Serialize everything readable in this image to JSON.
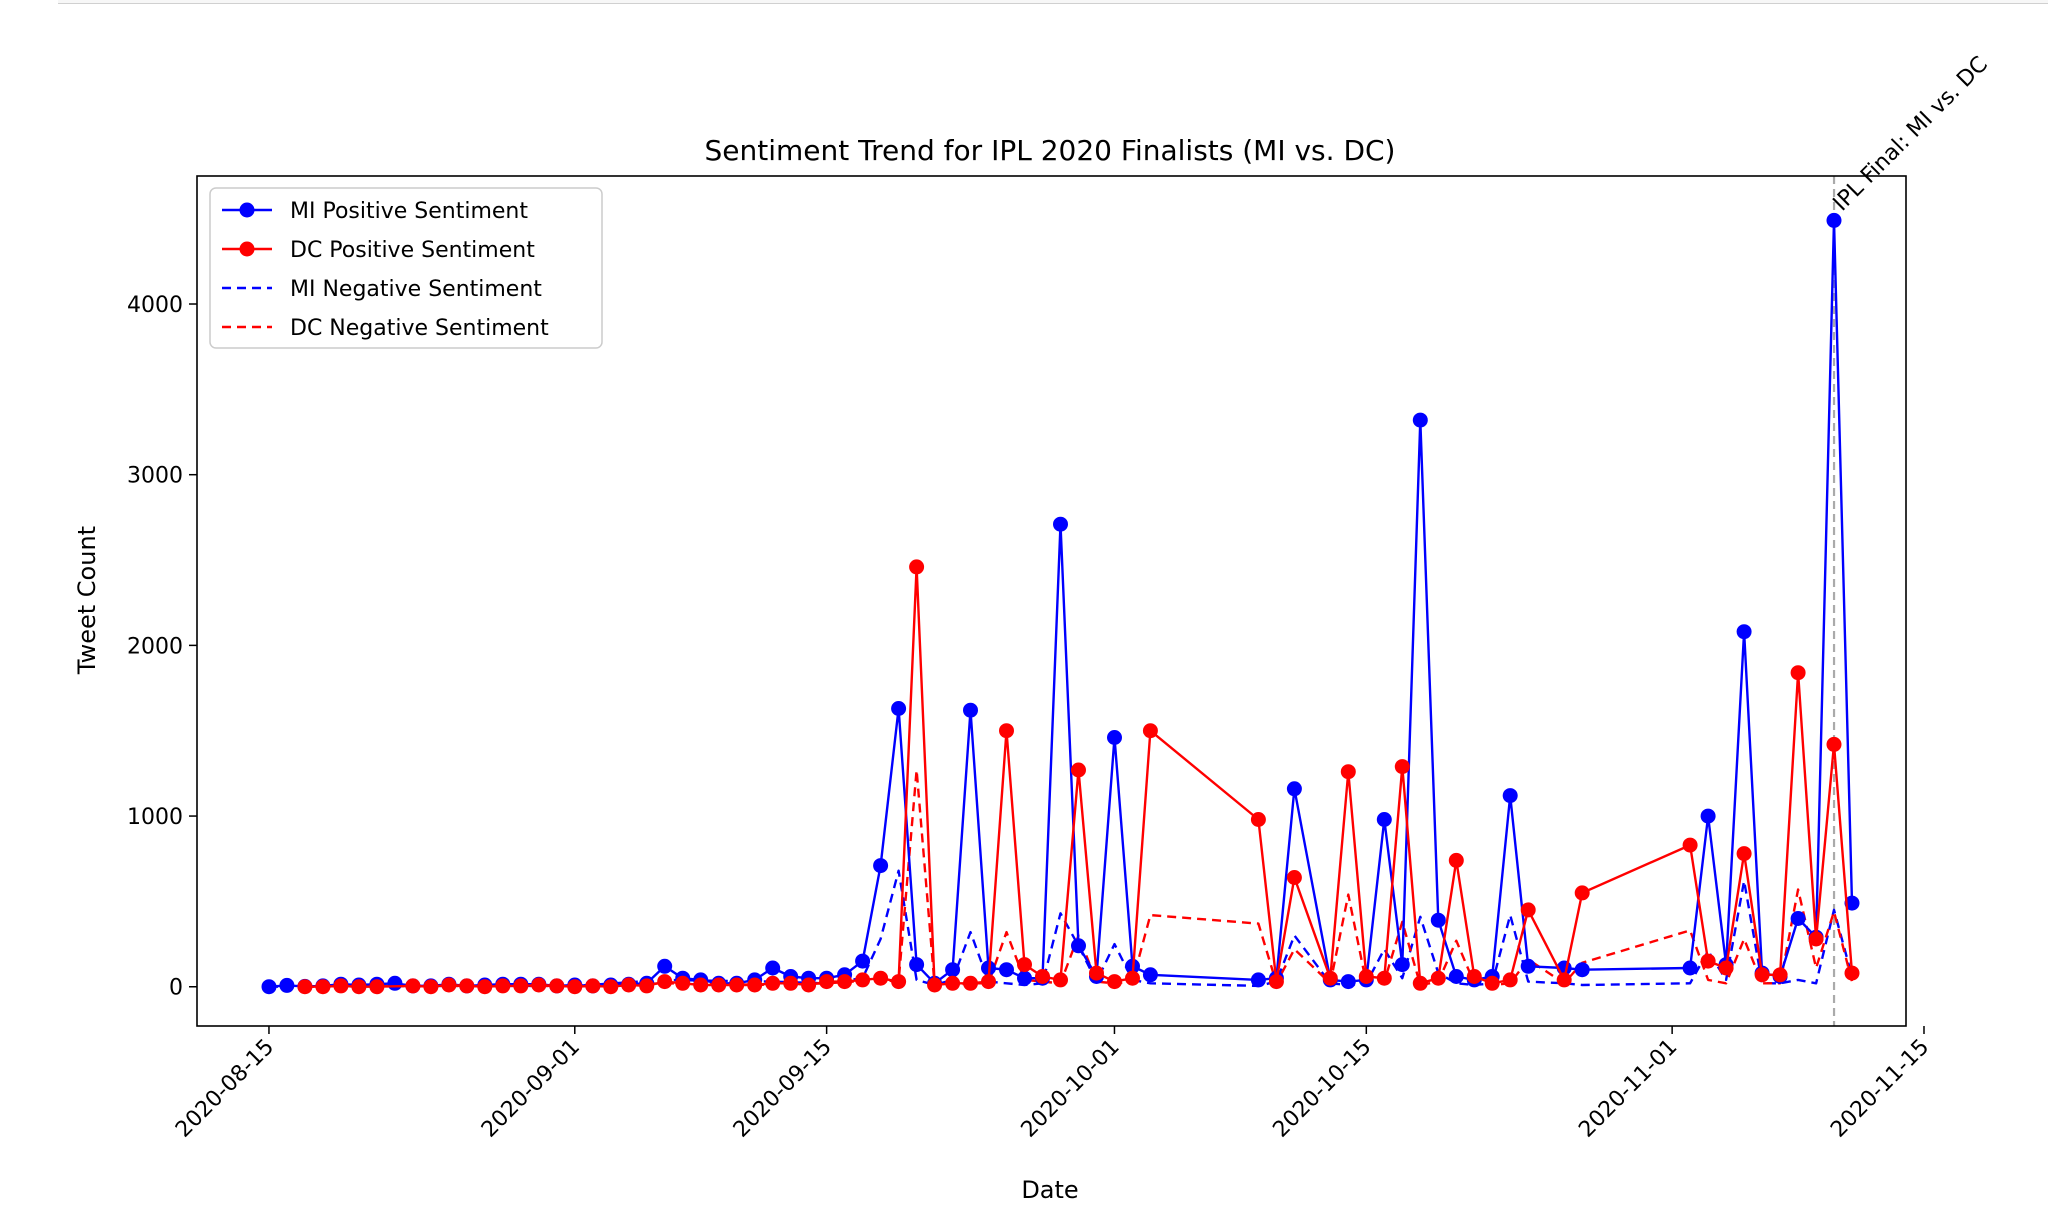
{
  "chart_data": {
    "type": "line",
    "title": "Sentiment Trend for IPL 2020 Finalists (MI vs. DC)",
    "xlabel": "Date",
    "ylabel": "Tweet Count",
    "xlim": [
      "2020-08-11",
      "2020-11-14"
    ],
    "ylim": [
      -230,
      4750
    ],
    "x_ticks": [
      "2020-08-15",
      "2020-09-01",
      "2020-09-15",
      "2020-10-01",
      "2020-10-15",
      "2020-11-01",
      "2020-11-15"
    ],
    "y_ticks": [
      0,
      1000,
      2000,
      3000,
      4000
    ],
    "legend_position": "upper-left",
    "grid": false,
    "annotation": {
      "date": "2020-11-10",
      "label": "IPL Final: MI vs. DC"
    },
    "series": [
      {
        "name": "MI Positive Sentiment",
        "color": "#0000ff",
        "style": "solid-marker",
        "points": [
          [
            "2020-08-15",
            0
          ],
          [
            "2020-08-16",
            8
          ],
          [
            "2020-08-17",
            2
          ],
          [
            "2020-08-18",
            5
          ],
          [
            "2020-08-19",
            15
          ],
          [
            "2020-08-20",
            10
          ],
          [
            "2020-08-21",
            15
          ],
          [
            "2020-08-22",
            20
          ],
          [
            "2020-08-23",
            5
          ],
          [
            "2020-08-24",
            5
          ],
          [
            "2020-08-25",
            15
          ],
          [
            "2020-08-26",
            5
          ],
          [
            "2020-08-27",
            10
          ],
          [
            "2020-08-28",
            15
          ],
          [
            "2020-08-29",
            15
          ],
          [
            "2020-08-30",
            15
          ],
          [
            "2020-08-31",
            5
          ],
          [
            "2020-09-01",
            10
          ],
          [
            "2020-09-02",
            5
          ],
          [
            "2020-09-03",
            10
          ],
          [
            "2020-09-04",
            15
          ],
          [
            "2020-09-05",
            20
          ],
          [
            "2020-09-06",
            120
          ],
          [
            "2020-09-07",
            50
          ],
          [
            "2020-09-08",
            40
          ],
          [
            "2020-09-09",
            20
          ],
          [
            "2020-09-10",
            20
          ],
          [
            "2020-09-11",
            40
          ],
          [
            "2020-09-12",
            110
          ],
          [
            "2020-09-13",
            60
          ],
          [
            "2020-09-14",
            50
          ],
          [
            "2020-09-15",
            50
          ],
          [
            "2020-09-16",
            70
          ],
          [
            "2020-09-17",
            150
          ],
          [
            "2020-09-18",
            710
          ],
          [
            "2020-09-19",
            1630
          ],
          [
            "2020-09-20",
            130
          ],
          [
            "2020-09-21",
            20
          ],
          [
            "2020-09-22",
            100
          ],
          [
            "2020-09-23",
            1620
          ],
          [
            "2020-09-24",
            110
          ],
          [
            "2020-09-25",
            100
          ],
          [
            "2020-09-26",
            50
          ],
          [
            "2020-09-27",
            50
          ],
          [
            "2020-09-28",
            2710
          ],
          [
            "2020-09-29",
            240
          ],
          [
            "2020-09-30",
            60
          ],
          [
            "2020-10-01",
            1460
          ],
          [
            "2020-10-02",
            120
          ],
          [
            "2020-10-03",
            70
          ],
          [
            "2020-10-09",
            40
          ],
          [
            "2020-10-10",
            50
          ],
          [
            "2020-10-11",
            1160
          ],
          [
            "2020-10-13",
            40
          ],
          [
            "2020-10-14",
            30
          ],
          [
            "2020-10-15",
            40
          ],
          [
            "2020-10-16",
            980
          ],
          [
            "2020-10-17",
            130
          ],
          [
            "2020-10-18",
            3320
          ],
          [
            "2020-10-19",
            390
          ],
          [
            "2020-10-20",
            60
          ],
          [
            "2020-10-21",
            40
          ],
          [
            "2020-10-22",
            60
          ],
          [
            "2020-10-23",
            1120
          ],
          [
            "2020-10-24",
            120
          ],
          [
            "2020-10-26",
            110
          ],
          [
            "2020-10-27",
            100
          ],
          [
            "2020-11-02",
            110
          ],
          [
            "2020-11-03",
            1000
          ],
          [
            "2020-11-04",
            130
          ],
          [
            "2020-11-05",
            2080
          ],
          [
            "2020-11-06",
            80
          ],
          [
            "2020-11-07",
            60
          ],
          [
            "2020-11-08",
            400
          ],
          [
            "2020-11-09",
            290
          ],
          [
            "2020-11-10",
            4490
          ],
          [
            "2020-11-11",
            490
          ]
        ]
      },
      {
        "name": "DC Positive Sentiment",
        "color": "#ff0000",
        "style": "solid-marker",
        "points": [
          [
            "2020-08-17",
            0
          ],
          [
            "2020-08-18",
            0
          ],
          [
            "2020-08-19",
            5
          ],
          [
            "2020-08-20",
            0
          ],
          [
            "2020-08-21",
            0
          ],
          [
            "2020-08-23",
            5
          ],
          [
            "2020-08-24",
            0
          ],
          [
            "2020-08-25",
            10
          ],
          [
            "2020-08-26",
            5
          ],
          [
            "2020-08-27",
            0
          ],
          [
            "2020-08-28",
            5
          ],
          [
            "2020-08-29",
            5
          ],
          [
            "2020-08-30",
            10
          ],
          [
            "2020-08-31",
            5
          ],
          [
            "2020-09-01",
            0
          ],
          [
            "2020-09-02",
            5
          ],
          [
            "2020-09-03",
            0
          ],
          [
            "2020-09-04",
            10
          ],
          [
            "2020-09-05",
            5
          ],
          [
            "2020-09-06",
            30
          ],
          [
            "2020-09-07",
            20
          ],
          [
            "2020-09-08",
            10
          ],
          [
            "2020-09-09",
            10
          ],
          [
            "2020-09-10",
            10
          ],
          [
            "2020-09-11",
            10
          ],
          [
            "2020-09-12",
            20
          ],
          [
            "2020-09-13",
            20
          ],
          [
            "2020-09-14",
            10
          ],
          [
            "2020-09-15",
            30
          ],
          [
            "2020-09-16",
            30
          ],
          [
            "2020-09-17",
            40
          ],
          [
            "2020-09-18",
            50
          ],
          [
            "2020-09-19",
            30
          ],
          [
            "2020-09-20",
            2460
          ],
          [
            "2020-09-21",
            10
          ],
          [
            "2020-09-22",
            20
          ],
          [
            "2020-09-23",
            20
          ],
          [
            "2020-09-24",
            30
          ],
          [
            "2020-09-25",
            1500
          ],
          [
            "2020-09-26",
            130
          ],
          [
            "2020-09-27",
            60
          ],
          [
            "2020-09-28",
            40
          ],
          [
            "2020-09-29",
            1270
          ],
          [
            "2020-09-30",
            80
          ],
          [
            "2020-10-01",
            30
          ],
          [
            "2020-10-02",
            50
          ],
          [
            "2020-10-03",
            1500
          ],
          [
            "2020-10-09",
            980
          ],
          [
            "2020-10-10",
            30
          ],
          [
            "2020-10-11",
            640
          ],
          [
            "2020-10-13",
            50
          ],
          [
            "2020-10-14",
            1260
          ],
          [
            "2020-10-15",
            60
          ],
          [
            "2020-10-16",
            50
          ],
          [
            "2020-10-17",
            1290
          ],
          [
            "2020-10-18",
            20
          ],
          [
            "2020-10-19",
            50
          ],
          [
            "2020-10-20",
            740
          ],
          [
            "2020-10-21",
            60
          ],
          [
            "2020-10-22",
            20
          ],
          [
            "2020-10-23",
            40
          ],
          [
            "2020-10-24",
            450
          ],
          [
            "2020-10-26",
            40
          ],
          [
            "2020-10-27",
            550
          ],
          [
            "2020-11-02",
            830
          ],
          [
            "2020-11-03",
            150
          ],
          [
            "2020-11-04",
            110
          ],
          [
            "2020-11-05",
            780
          ],
          [
            "2020-11-06",
            70
          ],
          [
            "2020-11-07",
            70
          ],
          [
            "2020-11-08",
            1840
          ],
          [
            "2020-11-09",
            280
          ],
          [
            "2020-11-10",
            1420
          ],
          [
            "2020-11-11",
            80
          ]
        ]
      },
      {
        "name": "MI Negative Sentiment",
        "color": "#0000ff",
        "style": "dashed",
        "points": [
          [
            "2020-08-15",
            0
          ],
          [
            "2020-08-20",
            5
          ],
          [
            "2020-08-25",
            5
          ],
          [
            "2020-09-01",
            5
          ],
          [
            "2020-09-06",
            40
          ],
          [
            "2020-09-12",
            30
          ],
          [
            "2020-09-15",
            20
          ],
          [
            "2020-09-17",
            50
          ],
          [
            "2020-09-18",
            280
          ],
          [
            "2020-09-19",
            680
          ],
          [
            "2020-09-20",
            40
          ],
          [
            "2020-09-21",
            10
          ],
          [
            "2020-09-22",
            40
          ],
          [
            "2020-09-23",
            320
          ],
          [
            "2020-09-24",
            30
          ],
          [
            "2020-09-25",
            20
          ],
          [
            "2020-09-26",
            10
          ],
          [
            "2020-09-27",
            20
          ],
          [
            "2020-09-28",
            430
          ],
          [
            "2020-09-29",
            240
          ],
          [
            "2020-09-30",
            30
          ],
          [
            "2020-10-01",
            250
          ],
          [
            "2020-10-02",
            40
          ],
          [
            "2020-10-03",
            20
          ],
          [
            "2020-10-09",
            5
          ],
          [
            "2020-10-10",
            30
          ],
          [
            "2020-10-11",
            300
          ],
          [
            "2020-10-13",
            20
          ],
          [
            "2020-10-14",
            10
          ],
          [
            "2020-10-15",
            20
          ],
          [
            "2020-10-16",
            220
          ],
          [
            "2020-10-17",
            50
          ],
          [
            "2020-10-18",
            410
          ],
          [
            "2020-10-19",
            80
          ],
          [
            "2020-10-20",
            20
          ],
          [
            "2020-10-21",
            10
          ],
          [
            "2020-10-22",
            20
          ],
          [
            "2020-10-23",
            420
          ],
          [
            "2020-10-24",
            30
          ],
          [
            "2020-10-26",
            20
          ],
          [
            "2020-10-27",
            10
          ],
          [
            "2020-11-02",
            20
          ],
          [
            "2020-11-03",
            210
          ],
          [
            "2020-11-04",
            40
          ],
          [
            "2020-11-05",
            620
          ],
          [
            "2020-11-06",
            20
          ],
          [
            "2020-11-07",
            20
          ],
          [
            "2020-11-08",
            40
          ],
          [
            "2020-11-09",
            20
          ],
          [
            "2020-11-10",
            450
          ],
          [
            "2020-11-11",
            60
          ]
        ]
      },
      {
        "name": "DC Negative Sentiment",
        "color": "#ff0000",
        "style": "dashed",
        "points": [
          [
            "2020-08-17",
            0
          ],
          [
            "2020-08-25",
            5
          ],
          [
            "2020-09-01",
            5
          ],
          [
            "2020-09-06",
            20
          ],
          [
            "2020-09-12",
            10
          ],
          [
            "2020-09-15",
            20
          ],
          [
            "2020-09-18",
            40
          ],
          [
            "2020-09-19",
            30
          ],
          [
            "2020-09-20",
            1270
          ],
          [
            "2020-09-21",
            10
          ],
          [
            "2020-09-22",
            10
          ],
          [
            "2020-09-23",
            20
          ],
          [
            "2020-09-24",
            20
          ],
          [
            "2020-09-25",
            320
          ],
          [
            "2020-09-26",
            40
          ],
          [
            "2020-09-27",
            30
          ],
          [
            "2020-09-28",
            20
          ],
          [
            "2020-09-29",
            300
          ],
          [
            "2020-09-30",
            30
          ],
          [
            "2020-10-01",
            20
          ],
          [
            "2020-10-02",
            30
          ],
          [
            "2020-10-03",
            420
          ],
          [
            "2020-10-09",
            370
          ],
          [
            "2020-10-10",
            20
          ],
          [
            "2020-10-11",
            220
          ],
          [
            "2020-10-13",
            20
          ],
          [
            "2020-10-14",
            540
          ],
          [
            "2020-10-15",
            20
          ],
          [
            "2020-10-16",
            30
          ],
          [
            "2020-10-17",
            380
          ],
          [
            "2020-10-18",
            10
          ],
          [
            "2020-10-19",
            30
          ],
          [
            "2020-10-20",
            270
          ],
          [
            "2020-10-21",
            20
          ],
          [
            "2020-10-22",
            10
          ],
          [
            "2020-10-23",
            20
          ],
          [
            "2020-10-24",
            160
          ],
          [
            "2020-10-26",
            20
          ],
          [
            "2020-10-27",
            140
          ],
          [
            "2020-11-02",
            330
          ],
          [
            "2020-11-03",
            40
          ],
          [
            "2020-11-04",
            20
          ],
          [
            "2020-11-05",
            280
          ],
          [
            "2020-11-06",
            20
          ],
          [
            "2020-11-07",
            20
          ],
          [
            "2020-11-08",
            570
          ],
          [
            "2020-11-09",
            110
          ],
          [
            "2020-11-10",
            440
          ],
          [
            "2020-11-11",
            30
          ]
        ]
      }
    ]
  }
}
